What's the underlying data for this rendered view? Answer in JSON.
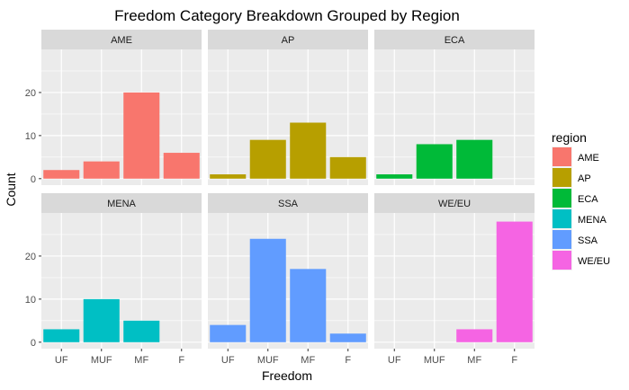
{
  "chart_data": {
    "type": "bar",
    "title": "Freedom Category Breakdown Grouped by Region",
    "xlabel": "Freedom",
    "ylabel": "Count",
    "categories": [
      "UF",
      "MUF",
      "MF",
      "F"
    ],
    "yticks": [
      0,
      10,
      20
    ],
    "ylim": [
      -1.5,
      30
    ],
    "grid": true,
    "legend": {
      "title": "region",
      "position": "right",
      "items": [
        {
          "label": "AME",
          "color": "#F8766D"
        },
        {
          "label": "AP",
          "color": "#B79F00"
        },
        {
          "label": "ECA",
          "color": "#00BA38"
        },
        {
          "label": "MENA",
          "color": "#00BFC4"
        },
        {
          "label": "SSA",
          "color": "#619CFF"
        },
        {
          "label": "WE/EU",
          "color": "#F564E3"
        }
      ]
    },
    "facets": [
      {
        "name": "AME",
        "color": "#F8766D",
        "values": [
          2,
          4,
          20,
          6
        ]
      },
      {
        "name": "AP",
        "color": "#B79F00",
        "values": [
          1,
          9,
          13,
          5
        ]
      },
      {
        "name": "ECA",
        "color": "#00BA38",
        "values": [
          1,
          8,
          9,
          0
        ]
      },
      {
        "name": "MENA",
        "color": "#00BFC4",
        "values": [
          3,
          10,
          5,
          0
        ]
      },
      {
        "name": "SSA",
        "color": "#619CFF",
        "values": [
          4,
          24,
          17,
          2
        ]
      },
      {
        "name": "WE/EU",
        "color": "#F564E3",
        "values": [
          0,
          0,
          3,
          28
        ]
      }
    ]
  }
}
